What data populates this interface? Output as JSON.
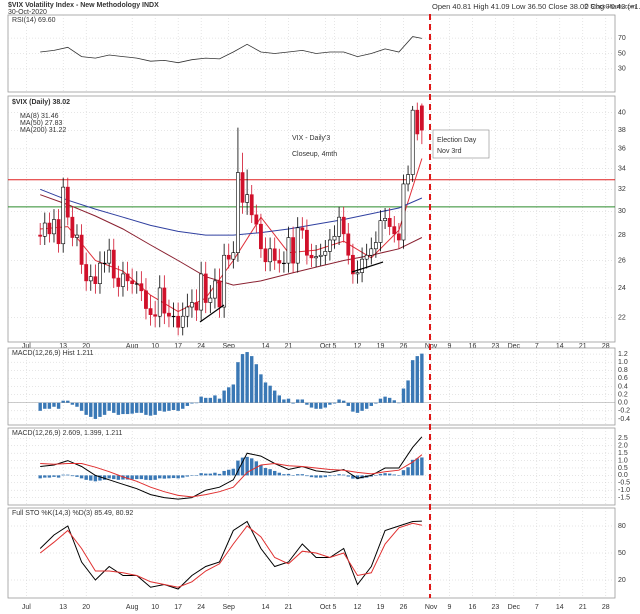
{
  "chart_data": [
    {
      "type": "line",
      "ylim": [
        0,
        100
      ],
      "yticks": [
        30,
        50,
        70
      ],
      "series": [
        {
          "name": "RSI(14) 69.60",
          "color": "#333333",
          "x": [
            0,
            3,
            6,
            9,
            12,
            15,
            18,
            21,
            24,
            27,
            30,
            33,
            36,
            39,
            42,
            45,
            48,
            51,
            54,
            57,
            60,
            63,
            66,
            69,
            72,
            75,
            78,
            81,
            83
          ],
          "values": [
            52,
            54,
            58,
            46,
            44,
            48,
            46,
            44,
            40,
            41,
            38,
            42,
            44,
            43,
            52,
            62,
            52,
            50,
            52,
            54,
            50,
            52,
            52,
            46,
            50,
            56,
            52,
            72,
            69.6
          ]
        }
      ]
    },
    {
      "type": "candlestick",
      "log": true,
      "title": "$VIX Volatility Index - New Methodology INDX",
      "subtitle": "30-Oct-2020",
      "quote": "Open 40.81 High 41.09 Low 36.50 Close 38.02 Chg +0.43 (+1.14%)",
      "credit": "© StockCharts.com",
      "annotations": [
        "VIX - Daily'3",
        "Closeup, 4mth"
      ],
      "note": [
        "Election Day",
        "Nov 3rd"
      ],
      "xlim": [
        -7,
        125
      ],
      "xticks": [
        {
          "value": -3,
          "label": "Jul"
        },
        {
          "value": 5,
          "label": "13"
        },
        {
          "value": 10,
          "label": "20"
        },
        {
          "value": 20,
          "label": "Aug"
        },
        {
          "value": 25,
          "label": "10"
        },
        {
          "value": 30,
          "label": "17"
        },
        {
          "value": 35,
          "label": "24"
        },
        {
          "value": 41,
          "label": "Sep"
        },
        {
          "value": 49,
          "label": "14"
        },
        {
          "value": 54,
          "label": "21"
        },
        {
          "value": 62,
          "label": "Oct"
        },
        {
          "value": 64,
          "label": "5"
        },
        {
          "value": 69,
          "label": "12"
        },
        {
          "value": 74,
          "label": "19"
        },
        {
          "value": 79,
          "label": "26"
        },
        {
          "value": 85,
          "label": "Nov"
        },
        {
          "value": 89,
          "label": "9"
        },
        {
          "value": 94,
          "label": "16"
        },
        {
          "value": 99,
          "label": "23"
        },
        {
          "value": 103,
          "label": "Dec"
        },
        {
          "value": 108,
          "label": "7"
        },
        {
          "value": 113,
          "label": "14"
        },
        {
          "value": 118,
          "label": "21"
        },
        {
          "value": 123,
          "label": "28"
        }
      ],
      "ylim": [
        20.5,
        42
      ],
      "yticks": [
        22,
        24,
        26,
        28,
        30,
        32,
        34,
        36,
        38,
        40
      ],
      "hlines": [
        {
          "value": 32.9,
          "color": "#e02020"
        },
        {
          "value": 30.4,
          "color": "#2a8a2a"
        }
      ],
      "candles": {
        "name": "$VIX (Daily) 38.02",
        "up_color": "#000000",
        "down_color": "#d0102a",
        "open": [
          28.0,
          27.9,
          29.0,
          28.1,
          29.3,
          27.3,
          32.2,
          29.5,
          27.8,
          28.0,
          25.7,
          24.5,
          24.8,
          24.3,
          25.8,
          25.8,
          26.8,
          24.7,
          24.1,
          25.0,
          24.5,
          24.3,
          24.3,
          23.8,
          22.6,
          22.2,
          22.1,
          24.0,
          22.3,
          22.1,
          22.1,
          21.4,
          22.1,
          22.7,
          23.0,
          22.5,
          25.0,
          23.0,
          23.3,
          24.5,
          22.7,
          26.4,
          26.1,
          26.6,
          33.6,
          30.8,
          31.5,
          29.7,
          28.9,
          26.9,
          25.9,
          26.9,
          26.0,
          25.8,
          25.8,
          27.8,
          25.8,
          28.6,
          28.4,
          26.4,
          26.2,
          26.3,
          26.4,
          26.7,
          27.6,
          27.9,
          29.5,
          28.1,
          26.4,
          25.0,
          25.1,
          26.1,
          26.4,
          26.9,
          27.4,
          29.2,
          29.4,
          28.7,
          28.1,
          27.6,
          32.5,
          33.4,
          40.3,
          40.81
        ],
        "high": [
          29.0,
          29.9,
          29.9,
          30.2,
          30.2,
          33.1,
          33.1,
          30.4,
          28.9,
          28.9,
          26.6,
          25.7,
          25.7,
          26.7,
          26.7,
          27.7,
          27.7,
          25.6,
          25.9,
          25.9,
          25.4,
          25.2,
          25.2,
          24.7,
          23.5,
          23.1,
          24.9,
          24.9,
          23.2,
          23.0,
          23.0,
          23.0,
          23.6,
          23.9,
          23.9,
          25.9,
          25.9,
          24.2,
          25.4,
          25.4,
          27.3,
          27.3,
          27.5,
          38.3,
          35.6,
          33.9,
          32.4,
          30.6,
          29.8,
          27.8,
          27.8,
          27.8,
          26.9,
          26.7,
          28.7,
          28.7,
          29.5,
          29.5,
          29.3,
          27.3,
          27.2,
          27.3,
          27.6,
          28.5,
          28.8,
          30.4,
          30.4,
          29.0,
          27.3,
          26.0,
          27.0,
          27.3,
          27.8,
          28.3,
          30.1,
          30.3,
          30.3,
          29.6,
          29.0,
          33.4,
          34.3,
          40.8,
          41.2,
          41.09
        ],
        "low": [
          27.2,
          27.2,
          27.4,
          27.4,
          26.6,
          26.6,
          28.8,
          27.1,
          27.1,
          25.0,
          23.8,
          23.8,
          23.6,
          23.6,
          25.1,
          25.1,
          24.0,
          23.4,
          23.4,
          23.8,
          23.6,
          23.6,
          23.1,
          21.9,
          21.5,
          21.4,
          21.4,
          21.6,
          21.4,
          21.4,
          20.9,
          20.9,
          21.4,
          22.0,
          21.8,
          21.8,
          22.3,
          22.3,
          22.6,
          22.0,
          22.0,
          25.4,
          25.4,
          25.9,
          29.8,
          29.7,
          29.0,
          28.2,
          26.2,
          25.2,
          25.2,
          25.3,
          25.1,
          25.1,
          25.1,
          25.1,
          25.1,
          27.7,
          25.7,
          25.5,
          25.5,
          25.6,
          25.7,
          26.0,
          26.9,
          27.2,
          27.4,
          25.7,
          24.3,
          24.3,
          24.4,
          25.4,
          25.7,
          26.2,
          26.7,
          28.5,
          28.0,
          27.4,
          26.9,
          26.9,
          31.8,
          32.7,
          36.9,
          36.5
        ],
        "close": [
          27.9,
          29.0,
          28.1,
          29.3,
          27.3,
          32.2,
          29.5,
          27.8,
          28.0,
          25.7,
          24.5,
          24.8,
          24.3,
          25.8,
          25.8,
          26.8,
          24.7,
          24.1,
          25.0,
          24.5,
          24.3,
          24.3,
          23.8,
          22.6,
          22.2,
          22.1,
          24.0,
          22.3,
          22.1,
          22.1,
          21.4,
          22.1,
          22.7,
          23.0,
          22.5,
          25.0,
          23.0,
          23.3,
          24.5,
          22.7,
          26.4,
          26.1,
          26.6,
          33.6,
          30.8,
          31.5,
          29.7,
          28.9,
          26.9,
          25.9,
          26.9,
          26.0,
          25.8,
          25.8,
          27.8,
          25.8,
          28.6,
          28.4,
          26.4,
          26.2,
          26.3,
          26.4,
          26.7,
          27.6,
          27.9,
          29.5,
          28.1,
          26.4,
          25.0,
          25.1,
          26.1,
          26.4,
          26.9,
          27.4,
          29.2,
          29.4,
          28.7,
          28.1,
          27.6,
          32.5,
          33.4,
          40.3,
          37.6,
          38.02
        ]
      },
      "series": [
        {
          "name": "MA(8) 31.46",
          "color": "#e0303a",
          "x": [
            0,
            6,
            12,
            18,
            24,
            30,
            36,
            42,
            48,
            54,
            60,
            66,
            72,
            78,
            83
          ],
          "values": [
            28.5,
            28.7,
            26.0,
            25.2,
            23.5,
            22.4,
            23.3,
            26.0,
            29.5,
            26.6,
            26.8,
            27.5,
            26.2,
            28.4,
            35.0
          ]
        },
        {
          "name": "MA(50) 27.83",
          "color": "#8a2030",
          "x": [
            0,
            6,
            12,
            18,
            24,
            30,
            36,
            42,
            48,
            54,
            60,
            66,
            72,
            78,
            83
          ],
          "values": [
            31.5,
            30.6,
            29.6,
            28.5,
            27.2,
            26.0,
            24.8,
            24.2,
            24.5,
            25.0,
            25.5,
            26.0,
            26.4,
            26.9,
            27.8
          ]
        },
        {
          "name": "MA(200) 31.22",
          "color": "#3040a0",
          "x": [
            0,
            6,
            12,
            18,
            24,
            30,
            36,
            42,
            48,
            54,
            60,
            66,
            72,
            78,
            83
          ],
          "values": [
            32.0,
            31.0,
            30.2,
            29.5,
            28.8,
            28.3,
            28.0,
            28.0,
            28.2,
            28.5,
            28.9,
            29.3,
            29.8,
            30.3,
            31.2
          ]
        }
      ]
    },
    {
      "type": "bar",
      "name": "MACD(12,26,9) Hist 1.211",
      "color": "#3a78b5",
      "ylim": [
        -0.55,
        1.35
      ],
      "yticks": [
        -0.4,
        -0.2,
        {
          "value": 0,
          "label": "0.0"
        },
        0.2,
        0.4,
        0.6,
        0.8,
        {
          "value": 1,
          "label": "1.0"
        },
        1.2
      ],
      "values": [
        -0.2,
        -0.15,
        -0.15,
        -0.1,
        -0.15,
        0.05,
        0.05,
        -0.05,
        -0.1,
        -0.2,
        -0.3,
        -0.35,
        -0.4,
        -0.35,
        -0.3,
        -0.2,
        -0.25,
        -0.3,
        -0.28,
        -0.28,
        -0.27,
        -0.25,
        -0.25,
        -0.3,
        -0.32,
        -0.3,
        -0.2,
        -0.22,
        -0.2,
        -0.18,
        -0.2,
        -0.15,
        -0.08,
        -0.02,
        0.0,
        0.15,
        0.12,
        0.12,
        0.18,
        0.1,
        0.3,
        0.38,
        0.45,
        1.0,
        1.2,
        1.25,
        1.15,
        0.95,
        0.7,
        0.5,
        0.42,
        0.3,
        0.18,
        0.08,
        0.1,
        -0.02,
        0.08,
        0.08,
        -0.05,
        -0.12,
        -0.15,
        -0.15,
        -0.12,
        -0.05,
        -0.02,
        0.08,
        0.05,
        -0.08,
        -0.22,
        -0.25,
        -0.2,
        -0.15,
        -0.08,
        -0.02,
        0.1,
        0.15,
        0.12,
        0.06,
        0.0,
        0.35,
        0.55,
        1.05,
        1.15,
        1.211
      ]
    },
    {
      "type": "line",
      "label": "MACD(12,26,9) 2.609, 1.399, 1.211",
      "ylim": [
        -2,
        3.2
      ],
      "yticks": [
        -1.5,
        {
          "value": -1,
          "label": "-1.0"
        },
        -0.5,
        {
          "value": 0,
          "label": "0.0"
        },
        0.5,
        {
          "value": 1,
          "label": "1.0"
        },
        1.5,
        {
          "value": 2,
          "label": "2.0"
        },
        2.5
      ],
      "series": [
        {
          "color": "#000000",
          "x": [
            0,
            3,
            6,
            9,
            12,
            15,
            18,
            21,
            24,
            27,
            30,
            33,
            36,
            39,
            42,
            45,
            48,
            51,
            54,
            57,
            60,
            63,
            66,
            69,
            72,
            75,
            78,
            81,
            83
          ],
          "values": [
            0.6,
            0.7,
            1.0,
            0.6,
            0.0,
            -0.3,
            -0.6,
            -0.9,
            -1.3,
            -1.5,
            -1.6,
            -1.5,
            -1.0,
            -0.8,
            -0.3,
            1.5,
            1.3,
            0.8,
            0.4,
            0.6,
            0.3,
            0.2,
            0.4,
            -0.2,
            0.0,
            0.5,
            0.5,
            1.9,
            2.609
          ]
        },
        {
          "color": "#e03030",
          "x": [
            0,
            3,
            6,
            9,
            12,
            15,
            18,
            21,
            24,
            27,
            30,
            33,
            36,
            39,
            42,
            45,
            48,
            51,
            54,
            57,
            60,
            63,
            66,
            69,
            72,
            75,
            78,
            81,
            83
          ],
          "values": [
            0.8,
            0.75,
            0.8,
            0.8,
            0.55,
            0.25,
            -0.1,
            -0.4,
            -0.8,
            -1.1,
            -1.35,
            -1.45,
            -1.3,
            -1.1,
            -0.8,
            0.2,
            0.7,
            0.8,
            0.65,
            0.6,
            0.5,
            0.4,
            0.35,
            0.2,
            0.1,
            0.25,
            0.35,
            0.9,
            1.399
          ]
        }
      ]
    },
    {
      "type": "line",
      "label": "Full STO %K(14,3) %D(3) 85.49, 80.92",
      "ylim": [
        0,
        100
      ],
      "yticks": [
        20,
        50,
        80
      ],
      "series": [
        {
          "color": "#000000",
          "x": [
            0,
            3,
            6,
            9,
            12,
            15,
            18,
            21,
            24,
            27,
            30,
            33,
            36,
            39,
            42,
            45,
            48,
            51,
            54,
            57,
            60,
            63,
            66,
            69,
            72,
            75,
            78,
            81,
            83
          ],
          "values": [
            55,
            70,
            80,
            40,
            20,
            35,
            25,
            25,
            12,
            15,
            10,
            25,
            35,
            40,
            75,
            85,
            55,
            35,
            40,
            60,
            45,
            45,
            55,
            15,
            35,
            75,
            80,
            85,
            85.49
          ]
        },
        {
          "color": "#e03030",
          "x": [
            0,
            3,
            6,
            9,
            12,
            15,
            18,
            21,
            24,
            27,
            30,
            33,
            36,
            39,
            42,
            45,
            48,
            51,
            54,
            57,
            60,
            63,
            66,
            69,
            72,
            75,
            78,
            81,
            83
          ],
          "values": [
            50,
            62,
            75,
            55,
            30,
            30,
            28,
            25,
            18,
            15,
            12,
            18,
            30,
            38,
            60,
            80,
            68,
            45,
            38,
            52,
            50,
            45,
            50,
            25,
            28,
            60,
            78,
            83,
            80.92
          ]
        }
      ]
    }
  ]
}
